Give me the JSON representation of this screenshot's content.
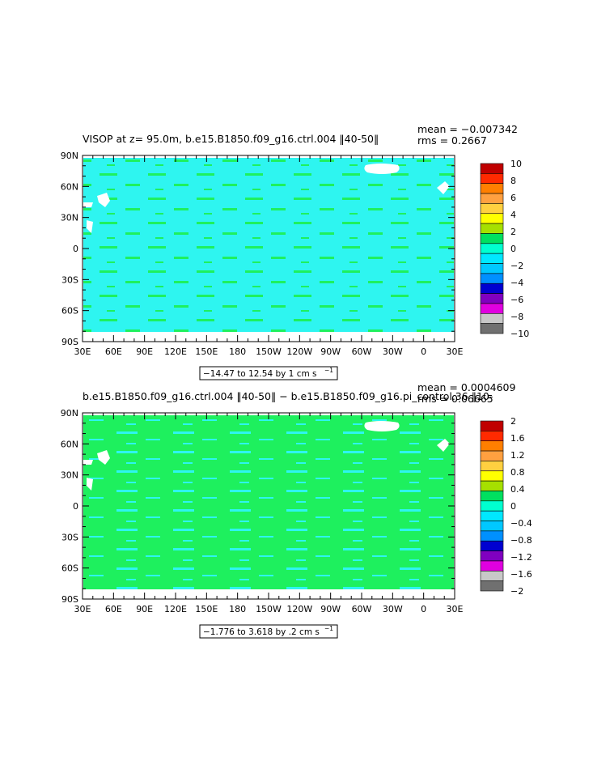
{
  "chart_data": [
    {
      "type": "heatmap",
      "title": "VISOP at z=  95.0m, b.e15.B1850.f09_g16.ctrl.004 ‖40-50‖",
      "stats": {
        "mean": "mean = −0.007342",
        "rms": "rms = 0.2667"
      },
      "range_label": "−14.47 to 12.54 by 1 cm s",
      "range_unit_exp": "−1",
      "x_ticks": [
        "30E",
        "60E",
        "90E",
        "120E",
        "150E",
        "180",
        "150W",
        "120W",
        "90W",
        "60W",
        "30W",
        "0",
        "30E"
      ],
      "y_ticks": [
        "90N",
        "60N",
        "30N",
        "0",
        "30S",
        "60S",
        "90S"
      ],
      "colorbar": {
        "labels": [
          "10",
          "8",
          "6",
          "4",
          "2",
          "0",
          "−2",
          "−4",
          "−6",
          "−8",
          "−10"
        ],
        "colors": [
          "#C00000",
          "#FF2A00",
          "#FF7F00",
          "#FFA040",
          "#FFD040",
          "#FFFF00",
          "#A6E000",
          "#00E060",
          "#00FFD0",
          "#00E8FF",
          "#00C8FF",
          "#0090FF",
          "#0000D0",
          "#8000C0",
          "#E000E0",
          "#C8C8C8",
          "#707070"
        ]
      },
      "dominant_value_band": "0 to −2",
      "colors": {
        "ocean": "#2EF5F0",
        "land": "#FFFFFF"
      }
    },
    {
      "type": "heatmap",
      "title": "b.e15.B1850.f09_g16.ctrl.004 ‖40-50‖ − b.e15.B1850.f09_g16.pi_control.36 ‖10-",
      "stats": {
        "mean": "mean = 0.0004609",
        "rms": "rms = 0.06665"
      },
      "range_label": "−1.776 to 3.618 by .2 cm s",
      "range_unit_exp": "−1",
      "x_ticks": [
        "30E",
        "60E",
        "90E",
        "120E",
        "150E",
        "180",
        "150W",
        "120W",
        "90W",
        "60W",
        "30W",
        "0",
        "30E"
      ],
      "y_ticks": [
        "90N",
        "60N",
        "30N",
        "0",
        "30S",
        "60S",
        "90S"
      ],
      "colorbar": {
        "labels": [
          "2",
          "1.6",
          "1.2",
          "0.8",
          "0.4",
          "0",
          "−0.4",
          "−0.8",
          "−1.2",
          "−1.6",
          "−2"
        ],
        "colors": [
          "#C00000",
          "#FF2A00",
          "#FF7F00",
          "#FFA040",
          "#FFD040",
          "#FFFF00",
          "#A6E000",
          "#00E060",
          "#00FFD0",
          "#00E8FF",
          "#00C8FF",
          "#0090FF",
          "#0000D0",
          "#8000C0",
          "#E000E0",
          "#C8C8C8",
          "#707070"
        ]
      },
      "dominant_value_band": "0 to 0.4",
      "colors": {
        "ocean": "#1EF05E",
        "land": "#FFFFFF"
      }
    }
  ]
}
